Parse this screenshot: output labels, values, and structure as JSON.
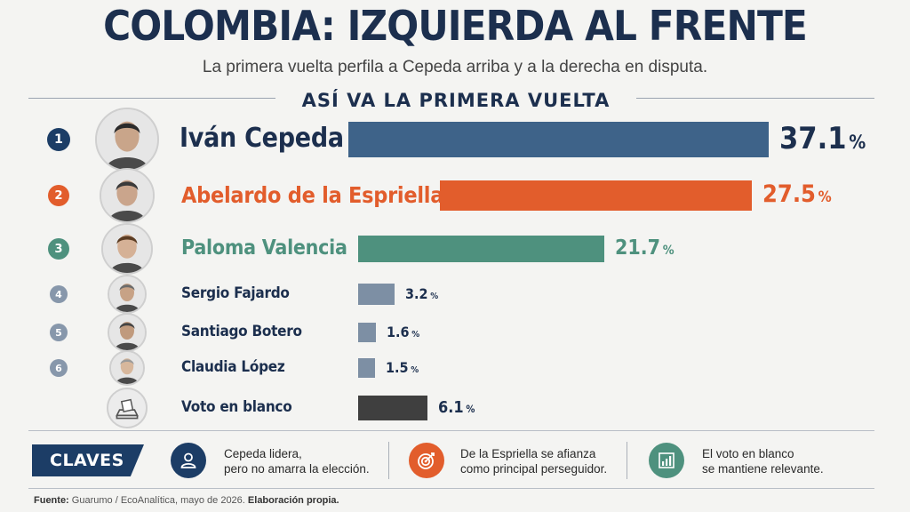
{
  "header": {
    "title": "COLOMBIA: IZQUIERDA AL FRENTE",
    "subtitle": "La primera vuelta perfila a Cepeda arriba y a la derecha en disputa."
  },
  "section_title": "ASÍ VA LA PRIMERA VUELTA",
  "chart_data": {
    "type": "bar",
    "orientation": "horizontal",
    "categories": [
      "Iván Cepeda",
      "Abelardo de la Espriella",
      "Paloma Valencia",
      "Sergio Fajardo",
      "Santiago Botero",
      "Claudia López",
      "Voto en blanco"
    ],
    "ranks": [
      "1",
      "2",
      "3",
      "4",
      "5",
      "6",
      ""
    ],
    "values": [
      37.1,
      27.5,
      21.7,
      3.2,
      1.6,
      1.5,
      6.1
    ],
    "value_labels": [
      "37.1",
      "27.5",
      "21.7",
      "3.2",
      "1.6",
      "1.5",
      "6.1"
    ],
    "unit": "%",
    "colors": [
      "#3e6389",
      "#e25d2c",
      "#4e917e",
      "#7d8fa4",
      "#7d8fa4",
      "#7d8fa4",
      "#3f3f3f"
    ],
    "icons": [
      "portrait-icon",
      "portrait-icon",
      "portrait-icon",
      "portrait-icon",
      "portrait-icon",
      "portrait-icon",
      "ballot-box-icon"
    ],
    "title": "",
    "xlabel": "",
    "ylabel": ""
  },
  "claves": {
    "label": "CLAVES",
    "items": [
      {
        "icon": "person-icon",
        "color": "#1c3d66",
        "line1": "Cepeda lidera,",
        "line2": "pero no amarra la elección."
      },
      {
        "icon": "target-icon",
        "color": "#e25d2c",
        "line1": "De la Espriella se afianza",
        "line2": "como principal perseguidor."
      },
      {
        "icon": "bar-chart-icon",
        "color": "#4e917e",
        "line1": "El voto en blanco",
        "line2": "se mantiene relevante."
      }
    ]
  },
  "footer": {
    "source_label": "Fuente:",
    "source_text": "Guarumo / EcoAnalítica, mayo de 2026.",
    "credit": "Elaboración propia."
  }
}
